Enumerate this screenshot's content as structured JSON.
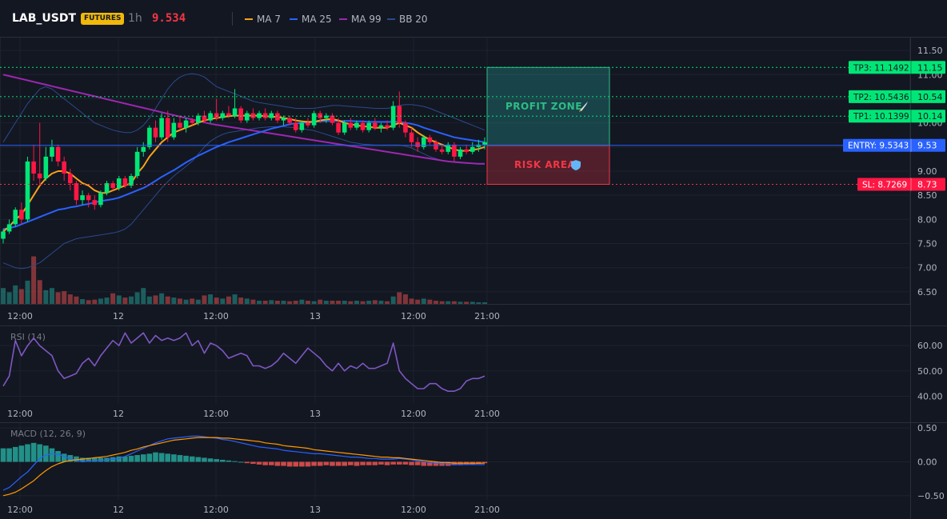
{
  "header": {
    "symbol": "LAB_USDT",
    "badge": "FUTURES",
    "timeframe": "1h",
    "price": "9.534",
    "legend": [
      {
        "label": "MA 7",
        "color": "#f7a21b"
      },
      {
        "label": "MA 25",
        "color": "#2962ff"
      },
      {
        "label": "MA 99",
        "color": "#9c27b0"
      },
      {
        "label": "BB 20",
        "color": "#2a4a8a"
      }
    ]
  },
  "levels": {
    "tp3": {
      "label": "TP3: 11.1492",
      "axis": "11.15",
      "value": 11.1492,
      "color": "#00e676"
    },
    "tp2": {
      "label": "TP2: 10.5436",
      "axis": "10.54",
      "value": 10.5436,
      "color": "#00e676"
    },
    "tp1": {
      "label": "TP1: 10.1399",
      "axis": "10.14",
      "value": 10.1399,
      "color": "#00e676"
    },
    "entry": {
      "label": "ENTRY: 9.5343",
      "axis": "9.53",
      "value": 9.5343,
      "color": "#2962ff"
    },
    "sl": {
      "label": "SL: 8.7269",
      "axis": "8.73",
      "value": 8.7269,
      "color": "#f23645"
    }
  },
  "zones": {
    "profit": {
      "label": "PROFIT ZONE",
      "icon": "rocket-icon"
    },
    "risk": {
      "label": "RISK AREA",
      "icon": "shield-icon"
    }
  },
  "price_axis": {
    "ticks": [
      "11.50",
      "11.00",
      "10.50",
      "10.00",
      "9.50",
      "9.00",
      "8.50",
      "8.00",
      "7.50",
      "7.00",
      "6.50"
    ]
  },
  "time_axis": {
    "labels": [
      "12:00",
      "12",
      "12:00",
      "13",
      "12:00",
      "21:00"
    ]
  },
  "rsi": {
    "title": "RSI (14)",
    "ticks": [
      "60.00",
      "50.00",
      "40.00"
    ]
  },
  "macd": {
    "title": "MACD (12, 26, 9)",
    "ticks": [
      "0.50",
      "0.00",
      "−0.50"
    ]
  },
  "chart_data": {
    "type": "candlestick",
    "candles": [
      [
        7.6,
        7.8,
        7.5,
        7.75
      ],
      [
        7.75,
        8.0,
        7.7,
        7.9
      ],
      [
        7.9,
        8.25,
        7.85,
        8.2
      ],
      [
        8.2,
        8.35,
        7.9,
        8.0
      ],
      [
        8.0,
        9.3,
        7.95,
        9.2
      ],
      [
        9.2,
        9.55,
        8.8,
        8.95
      ],
      [
        8.95,
        10.0,
        8.7,
        8.85
      ],
      [
        8.85,
        9.5,
        8.8,
        9.3
      ],
      [
        9.3,
        9.65,
        9.2,
        9.5
      ],
      [
        9.5,
        9.55,
        9.1,
        9.2
      ],
      [
        9.2,
        9.3,
        8.8,
        8.95
      ],
      [
        8.95,
        9.05,
        8.6,
        8.75
      ],
      [
        8.75,
        8.8,
        8.3,
        8.4
      ],
      [
        8.4,
        8.6,
        8.3,
        8.5
      ],
      [
        8.5,
        8.55,
        8.25,
        8.4
      ],
      [
        8.4,
        8.5,
        8.2,
        8.3
      ],
      [
        8.3,
        8.6,
        8.25,
        8.55
      ],
      [
        8.55,
        8.8,
        8.5,
        8.75
      ],
      [
        8.75,
        8.8,
        8.6,
        8.65
      ],
      [
        8.65,
        8.9,
        8.6,
        8.85
      ],
      [
        8.85,
        8.9,
        8.65,
        8.7
      ],
      [
        8.7,
        8.95,
        8.65,
        8.9
      ],
      [
        8.9,
        9.5,
        8.85,
        9.4
      ],
      [
        9.4,
        9.6,
        9.3,
        9.5
      ],
      [
        9.5,
        9.95,
        9.45,
        9.9
      ],
      [
        9.9,
        10.05,
        9.6,
        9.7
      ],
      [
        9.7,
        10.2,
        9.65,
        10.1
      ],
      [
        10.1,
        10.25,
        9.6,
        9.7
      ],
      [
        9.7,
        10.1,
        9.65,
        10.0
      ],
      [
        10.0,
        10.15,
        9.85,
        9.9
      ],
      [
        9.9,
        10.1,
        9.8,
        10.05
      ],
      [
        10.05,
        10.1,
        9.95,
        10.0
      ],
      [
        10.0,
        10.2,
        9.95,
        10.15
      ],
      [
        10.15,
        10.25,
        10.0,
        10.05
      ],
      [
        10.05,
        10.25,
        10.0,
        10.2
      ],
      [
        10.2,
        10.5,
        10.05,
        10.1
      ],
      [
        10.1,
        10.25,
        10.05,
        10.2
      ],
      [
        10.2,
        10.35,
        10.1,
        10.15
      ],
      [
        10.15,
        10.7,
        10.1,
        10.3
      ],
      [
        10.3,
        10.35,
        10.0,
        10.05
      ],
      [
        10.05,
        10.25,
        10.0,
        10.2
      ],
      [
        10.2,
        10.3,
        10.05,
        10.1
      ],
      [
        10.1,
        10.25,
        10.05,
        10.2
      ],
      [
        10.2,
        10.3,
        10.05,
        10.1
      ],
      [
        10.1,
        10.25,
        10.05,
        10.2
      ],
      [
        10.2,
        10.25,
        10.0,
        10.05
      ],
      [
        10.05,
        10.15,
        9.95,
        10.1
      ],
      [
        10.1,
        10.15,
        9.95,
        10.0
      ],
      [
        10.0,
        10.1,
        9.8,
        9.85
      ],
      [
        9.85,
        10.05,
        9.8,
        10.0
      ],
      [
        10.0,
        10.1,
        9.9,
        9.95
      ],
      [
        9.95,
        10.25,
        9.9,
        10.2
      ],
      [
        10.2,
        10.25,
        10.0,
        10.1
      ],
      [
        10.1,
        10.2,
        10.0,
        10.15
      ],
      [
        10.15,
        10.2,
        9.95,
        10.0
      ],
      [
        10.0,
        10.1,
        9.75,
        9.8
      ],
      [
        9.8,
        10.05,
        9.75,
        10.0
      ],
      [
        10.0,
        10.1,
        9.85,
        9.9
      ],
      [
        9.9,
        10.05,
        9.85,
        10.0
      ],
      [
        10.0,
        10.05,
        9.8,
        9.85
      ],
      [
        9.85,
        10.05,
        9.8,
        10.0
      ],
      [
        10.0,
        10.1,
        9.85,
        9.9
      ],
      [
        9.9,
        10.0,
        9.8,
        9.95
      ],
      [
        9.95,
        10.05,
        9.85,
        9.9
      ],
      [
        9.9,
        10.45,
        9.85,
        10.35
      ],
      [
        10.35,
        10.65,
        9.9,
        10.0
      ],
      [
        10.0,
        10.05,
        9.7,
        9.8
      ],
      [
        9.8,
        9.9,
        9.5,
        9.6
      ],
      [
        9.6,
        9.7,
        9.4,
        9.5
      ],
      [
        9.5,
        9.75,
        9.45,
        9.7
      ],
      [
        9.7,
        9.75,
        9.55,
        9.6
      ],
      [
        9.6,
        9.65,
        9.4,
        9.45
      ],
      [
        9.45,
        9.55,
        9.35,
        9.4
      ],
      [
        9.4,
        9.6,
        9.35,
        9.55
      ],
      [
        9.55,
        9.6,
        9.2,
        9.3
      ],
      [
        9.3,
        9.5,
        9.25,
        9.45
      ],
      [
        9.45,
        9.55,
        9.35,
        9.4
      ],
      [
        9.4,
        9.6,
        9.35,
        9.5
      ],
      [
        9.5,
        9.65,
        9.4,
        9.55
      ],
      [
        9.55,
        9.7,
        9.45,
        9.6
      ]
    ],
    "ma7": [
      7.75,
      7.85,
      8.0,
      8.1,
      8.3,
      8.5,
      8.7,
      8.85,
      8.95,
      9.0,
      9.0,
      8.95,
      8.85,
      8.75,
      8.7,
      8.6,
      8.55,
      8.55,
      8.6,
      8.65,
      8.7,
      8.75,
      8.95,
      9.1,
      9.3,
      9.45,
      9.6,
      9.7,
      9.8,
      9.85,
      9.9,
      9.95,
      10.0,
      10.05,
      10.08,
      10.1,
      10.12,
      10.14,
      10.15,
      10.15,
      10.15,
      10.15,
      10.15,
      10.14,
      10.13,
      10.12,
      10.1,
      10.08,
      10.05,
      10.03,
      10.02,
      10.02,
      10.05,
      10.07,
      10.08,
      10.05,
      10.0,
      9.97,
      9.95,
      9.93,
      9.92,
      9.9,
      9.9,
      9.9,
      9.95,
      10.0,
      9.95,
      9.9,
      9.8,
      9.72,
      9.65,
      9.6,
      9.55,
      9.5,
      9.45,
      9.42,
      9.42,
      9.44,
      9.46,
      9.5
    ],
    "ma25": [
      7.8,
      7.82,
      7.85,
      7.9,
      7.95,
      8.0,
      8.05,
      8.1,
      8.15,
      8.2,
      8.22,
      8.25,
      8.27,
      8.3,
      8.32,
      8.35,
      8.38,
      8.4,
      8.42,
      8.45,
      8.5,
      8.55,
      8.6,
      8.65,
      8.72,
      8.8,
      8.88,
      8.95,
      9.02,
      9.1,
      9.18,
      9.25,
      9.32,
      9.38,
      9.44,
      9.5,
      9.55,
      9.6,
      9.64,
      9.68,
      9.72,
      9.76,
      9.8,
      9.84,
      9.88,
      9.91,
      9.94,
      9.97,
      9.99,
      10.0,
      10.01,
      10.02,
      10.03,
      10.04,
      10.04,
      10.04,
      10.04,
      10.04,
      10.03,
      10.03,
      10.02,
      10.02,
      10.02,
      10.02,
      10.02,
      10.02,
      10.0,
      9.98,
      9.95,
      9.9,
      9.86,
      9.82,
      9.78,
      9.74,
      9.7,
      9.68,
      9.66,
      9.64,
      9.62,
      9.6
    ],
    "ma99": [
      11.0,
      10.97,
      10.94,
      10.91,
      10.88,
      10.85,
      10.82,
      10.79,
      10.76,
      10.73,
      10.7,
      10.67,
      10.64,
      10.61,
      10.58,
      10.55,
      10.52,
      10.49,
      10.46,
      10.43,
      10.4,
      10.37,
      10.34,
      10.31,
      10.28,
      10.25,
      10.22,
      10.19,
      10.16,
      10.13,
      10.1,
      10.07,
      10.04,
      10.01,
      9.98,
      9.96,
      9.94,
      9.92,
      9.9,
      9.88,
      9.86,
      9.84,
      9.82,
      9.8,
      9.78,
      9.76,
      9.74,
      9.72,
      9.7,
      9.68,
      9.66,
      9.64,
      9.62,
      9.6,
      9.58,
      9.56,
      9.54,
      9.52,
      9.5,
      9.48,
      9.46,
      9.44,
      9.42,
      9.4,
      9.38,
      9.36,
      9.34,
      9.32,
      9.3,
      9.28,
      9.26,
      9.24,
      9.22,
      9.2,
      9.19,
      9.18,
      9.17,
      9.16,
      9.15,
      9.15
    ],
    "bb_upper": [
      9.6,
      9.8,
      10.0,
      10.2,
      10.4,
      10.55,
      10.7,
      10.75,
      10.7,
      10.6,
      10.5,
      10.4,
      10.3,
      10.2,
      10.1,
      10.0,
      9.95,
      9.9,
      9.85,
      9.82,
      9.8,
      9.8,
      9.85,
      9.95,
      10.1,
      10.3,
      10.5,
      10.7,
      10.85,
      10.95,
      11.0,
      11.02,
      11.0,
      10.95,
      10.85,
      10.75,
      10.7,
      10.65,
      10.6,
      10.55,
      10.5,
      10.45,
      10.42,
      10.4,
      10.38,
      10.36,
      10.34,
      10.32,
      10.3,
      10.3,
      10.3,
      10.3,
      10.32,
      10.34,
      10.36,
      10.36,
      10.35,
      10.34,
      10.33,
      10.32,
      10.31,
      10.3,
      10.3,
      10.3,
      10.32,
      10.36,
      10.38,
      10.38,
      10.36,
      10.34,
      10.3,
      10.25,
      10.2,
      10.15,
      10.1,
      10.05,
      10.0,
      9.95,
      9.9,
      9.85
    ],
    "bb_lower": [
      7.1,
      7.05,
      7.0,
      6.98,
      7.0,
      7.05,
      7.1,
      7.2,
      7.3,
      7.4,
      7.5,
      7.55,
      7.6,
      7.62,
      7.64,
      7.66,
      7.68,
      7.7,
      7.72,
      7.75,
      7.8,
      7.9,
      8.05,
      8.2,
      8.35,
      8.5,
      8.65,
      8.78,
      8.9,
      9.0,
      9.1,
      9.2,
      9.35,
      9.5,
      9.62,
      9.7,
      9.76,
      9.8,
      9.82,
      9.84,
      9.86,
      9.88,
      9.9,
      9.91,
      9.92,
      9.92,
      9.92,
      9.91,
      9.9,
      9.88,
      9.86,
      9.84,
      9.8,
      9.76,
      9.72,
      9.68,
      9.64,
      9.6,
      9.58,
      9.56,
      9.55,
      9.54,
      9.54,
      9.54,
      9.54,
      9.54,
      9.52,
      9.48,
      9.42,
      9.36,
      9.3,
      9.26,
      9.22,
      9.2,
      9.18,
      9.17,
      9.16,
      9.16,
      9.16,
      9.16
    ],
    "volume": [
      0.3,
      0.22,
      0.35,
      0.28,
      0.44,
      0.9,
      0.45,
      0.26,
      0.3,
      0.22,
      0.24,
      0.18,
      0.14,
      0.09,
      0.07,
      0.08,
      0.1,
      0.12,
      0.2,
      0.16,
      0.12,
      0.14,
      0.22,
      0.3,
      0.14,
      0.16,
      0.2,
      0.14,
      0.12,
      0.1,
      0.08,
      0.1,
      0.08,
      0.16,
      0.18,
      0.12,
      0.1,
      0.14,
      0.18,
      0.12,
      0.1,
      0.08,
      0.06,
      0.06,
      0.07,
      0.06,
      0.06,
      0.05,
      0.06,
      0.08,
      0.06,
      0.05,
      0.08,
      0.06,
      0.06,
      0.06,
      0.06,
      0.05,
      0.06,
      0.05,
      0.06,
      0.07,
      0.06,
      0.05,
      0.14,
      0.22,
      0.18,
      0.1,
      0.08,
      0.1,
      0.08,
      0.06,
      0.05,
      0.05,
      0.05,
      0.04,
      0.04,
      0.04,
      0.03,
      0.03
    ],
    "rsi": [
      44,
      48,
      62,
      56,
      60,
      63,
      60,
      58,
      56,
      50,
      47,
      48,
      49,
      53,
      55,
      52,
      56,
      59,
      62,
      60,
      65,
      61,
      63,
      65,
      61,
      64,
      62,
      63,
      62,
      63,
      65,
      60,
      62,
      57,
      61,
      60,
      58,
      55,
      56,
      57,
      56,
      52,
      52,
      51,
      52,
      54,
      57,
      55,
      53,
      56,
      59,
      57,
      55,
      52,
      50,
      53,
      50,
      52,
      51,
      53,
      51,
      51,
      52,
      53,
      61,
      50,
      47,
      45,
      43,
      43,
      45,
      45,
      43,
      42,
      42,
      43,
      46,
      47,
      47,
      48
    ],
    "macd_line": [
      -0.42,
      -0.38,
      -0.3,
      -0.22,
      -0.15,
      -0.05,
      0.05,
      0.1,
      0.12,
      0.11,
      0.08,
      0.05,
      0.02,
      0.0,
      0.01,
      0.02,
      0.02,
      0.03,
      0.04,
      0.05,
      0.08,
      0.12,
      0.16,
      0.2,
      0.24,
      0.28,
      0.31,
      0.34,
      0.35,
      0.36,
      0.37,
      0.38,
      0.38,
      0.37,
      0.36,
      0.35,
      0.33,
      0.32,
      0.3,
      0.28,
      0.26,
      0.24,
      0.22,
      0.21,
      0.2,
      0.19,
      0.17,
      0.16,
      0.15,
      0.14,
      0.13,
      0.12,
      0.12,
      0.11,
      0.1,
      0.09,
      0.08,
      0.07,
      0.07,
      0.06,
      0.05,
      0.05,
      0.04,
      0.04,
      0.04,
      0.05,
      0.04,
      0.03,
      0.01,
      0.0,
      -0.01,
      -0.02,
      -0.03,
      -0.03,
      -0.04,
      -0.04,
      -0.04,
      -0.04,
      -0.04,
      -0.04
    ],
    "macd_signal": [
      -0.5,
      -0.48,
      -0.45,
      -0.4,
      -0.34,
      -0.28,
      -0.2,
      -0.13,
      -0.07,
      -0.03,
      0.0,
      0.02,
      0.03,
      0.04,
      0.05,
      0.06,
      0.07,
      0.08,
      0.1,
      0.12,
      0.14,
      0.17,
      0.19,
      0.22,
      0.24,
      0.26,
      0.28,
      0.3,
      0.32,
      0.33,
      0.34,
      0.35,
      0.36,
      0.36,
      0.36,
      0.36,
      0.35,
      0.35,
      0.34,
      0.33,
      0.32,
      0.31,
      0.3,
      0.28,
      0.27,
      0.26,
      0.24,
      0.23,
      0.22,
      0.21,
      0.2,
      0.18,
      0.17,
      0.16,
      0.15,
      0.14,
      0.13,
      0.12,
      0.11,
      0.1,
      0.09,
      0.08,
      0.07,
      0.07,
      0.06,
      0.06,
      0.05,
      0.04,
      0.03,
      0.02,
      0.01,
      0.0,
      -0.01,
      -0.01,
      -0.02,
      -0.02,
      -0.02,
      -0.02,
      -0.02,
      -0.02
    ],
    "macd_hist": [
      0.2,
      0.2,
      0.22,
      0.24,
      0.26,
      0.28,
      0.26,
      0.24,
      0.2,
      0.16,
      0.12,
      0.1,
      0.08,
      0.06,
      0.06,
      0.06,
      0.06,
      0.06,
      0.07,
      0.08,
      0.08,
      0.09,
      0.1,
      0.11,
      0.12,
      0.14,
      0.13,
      0.12,
      0.11,
      0.1,
      0.09,
      0.08,
      0.07,
      0.06,
      0.05,
      0.04,
      0.03,
      0.02,
      0.01,
      0.0,
      -0.02,
      -0.03,
      -0.04,
      -0.05,
      -0.05,
      -0.06,
      -0.06,
      -0.07,
      -0.07,
      -0.07,
      -0.07,
      -0.06,
      -0.06,
      -0.05,
      -0.06,
      -0.06,
      -0.06,
      -0.05,
      -0.06,
      -0.05,
      -0.05,
      -0.05,
      -0.04,
      -0.05,
      -0.04,
      -0.04,
      -0.04,
      -0.05,
      -0.05,
      -0.06,
      -0.06,
      -0.06,
      -0.06,
      -0.06,
      -0.05,
      -0.05,
      -0.04,
      -0.04,
      -0.03,
      -0.02
    ],
    "price_range": [
      6.25,
      11.75
    ],
    "rsi_range": [
      37,
      67
    ],
    "macd_range": [
      -0.55,
      0.55
    ]
  }
}
